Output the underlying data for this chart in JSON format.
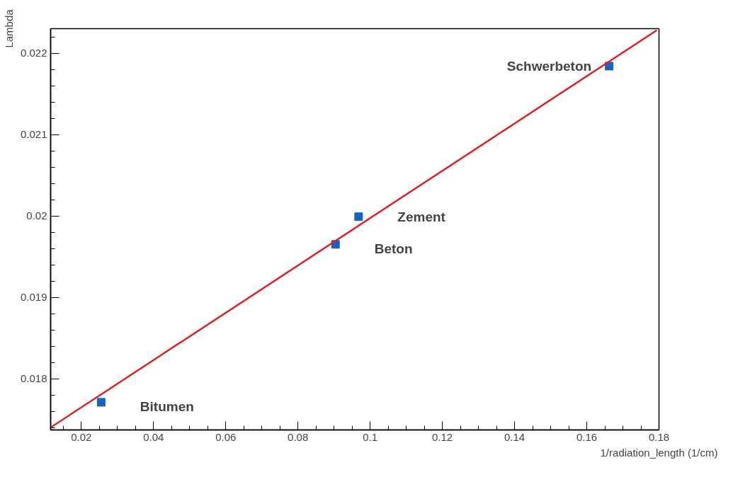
{
  "chart_data": {
    "type": "scatter",
    "xlabel": "1/radiation_length (1/cm)",
    "ylabel": "Lambda",
    "grid": false,
    "xlim": [
      0.0115,
      0.18
    ],
    "ylim": [
      0.01737,
      0.0223
    ],
    "xticks": [
      0.02,
      0.04,
      0.06,
      0.08,
      0.1,
      0.12,
      0.14,
      0.16,
      0.18
    ],
    "yticks": [
      0.018,
      0.019,
      0.02,
      0.021,
      0.022
    ],
    "series": [
      {
        "marker": "square",
        "color": "#1565c0",
        "x": [
          0.0255,
          0.0904,
          0.0968,
          0.1662
        ],
        "values": [
          0.01771,
          0.01965,
          0.01999,
          0.02184
        ]
      },
      {
        "type": "line",
        "color": "#e02020",
        "x": [
          0.0115,
          0.1794
        ],
        "values": [
          0.0174,
          0.02228
        ]
      }
    ],
    "annotations": [
      {
        "text": "Bitumen",
        "x": 0.0255,
        "y": 0.01771
      },
      {
        "text": "Beton",
        "x": 0.0904,
        "y": 0.01965
      },
      {
        "text": "Zement",
        "x": 0.0968,
        "y": 0.01999
      },
      {
        "text": "Schwerbeton",
        "x": 0.1662,
        "y": 0.02184
      }
    ]
  }
}
